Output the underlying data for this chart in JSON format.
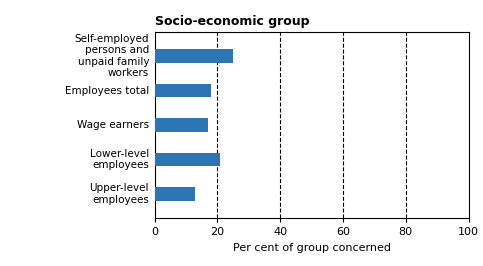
{
  "title": "Socio-economic group",
  "categories": [
    "Upper-level\nemployees",
    "Lower-level\nemployees",
    "Wage earners",
    "Employees total",
    "Self-employed\npersons and\nunpaid family\nworkers"
  ],
  "values": [
    13,
    21,
    17,
    18,
    25
  ],
  "bar_color": "#2e75b6",
  "xlabel": "Per cent of group concerned",
  "xlim": [
    0,
    100
  ],
  "xticks": [
    0,
    20,
    40,
    60,
    80,
    100
  ],
  "vlines": [
    20,
    40,
    60,
    80
  ],
  "background_color": "#ffffff",
  "title_fontsize": 9,
  "label_fontsize": 7.5,
  "tick_fontsize": 8,
  "xlabel_fontsize": 8
}
